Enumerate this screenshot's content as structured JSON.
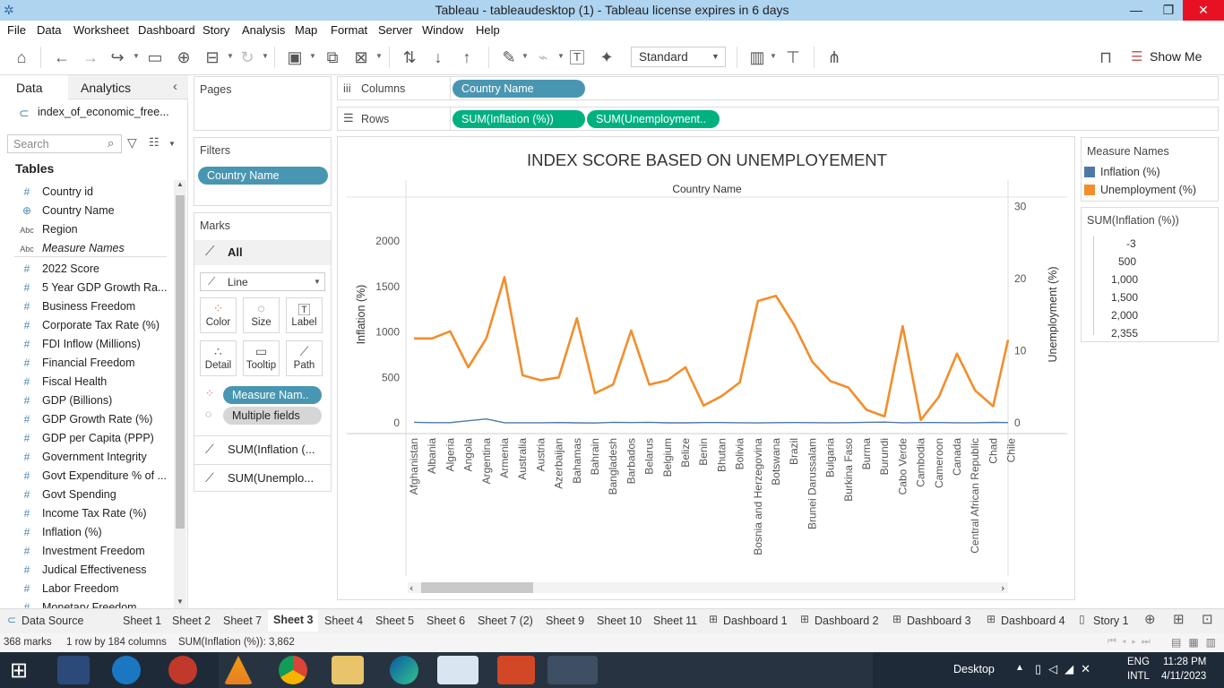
{
  "titlebar": {
    "title": "Tableau - tableaudesktop (1) - Tableau license expires in 6 days",
    "minimize": "—",
    "restore": "❐",
    "close": "✕"
  },
  "menu": [
    "File",
    "Data",
    "Worksheet",
    "Dashboard",
    "Story",
    "Analysis",
    "Map",
    "Format",
    "Server",
    "Window",
    "Help"
  ],
  "toolbar": {
    "fit_dropdown": "Standard",
    "show_me": "Show Me"
  },
  "left_panel": {
    "tab_data": "Data",
    "tab_analytics": "Analytics",
    "collapse": "‹",
    "datasource": "index_of_economic_free...",
    "search_placeholder": "Search",
    "tables_header": "Tables",
    "fields": [
      {
        "icon": "#",
        "name": "Country id"
      },
      {
        "icon": "globe",
        "name": "Country Name"
      },
      {
        "icon": "Abc",
        "name": "Region"
      },
      {
        "icon": "Abc",
        "name": "Measure Names"
      },
      {
        "icon": "#",
        "name": "2022 Score"
      },
      {
        "icon": "#",
        "name": "5 Year GDP Growth Ra..."
      },
      {
        "icon": "#",
        "name": "Business Freedom"
      },
      {
        "icon": "#",
        "name": "Corporate Tax Rate (%)"
      },
      {
        "icon": "#",
        "name": "FDI Inflow (Millions)"
      },
      {
        "icon": "#",
        "name": "Financial Freedom"
      },
      {
        "icon": "#",
        "name": "Fiscal Health"
      },
      {
        "icon": "#",
        "name": "GDP (Billions)"
      },
      {
        "icon": "#",
        "name": "GDP Growth Rate (%)"
      },
      {
        "icon": "#",
        "name": "GDP per Capita (PPP)"
      },
      {
        "icon": "#",
        "name": "Government Integrity"
      },
      {
        "icon": "#",
        "name": "Govt Expenditure % of ..."
      },
      {
        "icon": "#",
        "name": "Govt Spending"
      },
      {
        "icon": "#",
        "name": "Income Tax Rate (%)"
      },
      {
        "icon": "#",
        "name": "Inflation (%)"
      },
      {
        "icon": "#",
        "name": "Investment Freedom"
      },
      {
        "icon": "#",
        "name": "Judical Effectiveness"
      },
      {
        "icon": "#",
        "name": "Labor Freedom"
      },
      {
        "icon": "#",
        "name": "Monetary Freedom"
      }
    ]
  },
  "shelves": {
    "pages": "Pages",
    "columns_label": "Columns",
    "columns_pill": "Country Name",
    "rows_label": "Rows",
    "rows_pills": [
      "SUM(Inflation (%))",
      "SUM(Unemployment.."
    ],
    "filters": "Filters",
    "filter_pill": "Country Name"
  },
  "marks": {
    "header": "Marks",
    "all": "All",
    "type": "Line",
    "buttons": [
      "Color",
      "Size",
      "Label",
      "Detail",
      "Tooltip",
      "Path"
    ],
    "pill_measure": "Measure Nam..",
    "pill_multiple": "Multiple fields",
    "sum_inflation": "SUM(Inflation (...",
    "sum_unemployment": "SUM(Unemplo..."
  },
  "legend": {
    "measure_names_title": "Measure Names",
    "items": [
      {
        "name": "Inflation (%)",
        "color": "#4e79a7"
      },
      {
        "name": "Unemployment (%)",
        "color": "#f28e2b"
      }
    ],
    "size_title": "SUM(Inflation (%))",
    "size_values": [
      "-3",
      "500",
      "1,000",
      "1,500",
      "2,000",
      "2,355"
    ]
  },
  "chart_data": {
    "type": "line",
    "title": "INDEX SCORE BASED ON  UNEMPLOYEMENT",
    "xlabel": "Country Name",
    "ylabel_left": "Inflation (%)",
    "ylabel_right": "Unemployment (%)",
    "left_ticks": [
      "0",
      "500",
      "1000",
      "1500",
      "2000"
    ],
    "right_ticks": [
      "0",
      "10",
      "20",
      "30"
    ],
    "ylim_left": [
      -120,
      2400
    ],
    "ylim_right": [
      0,
      30
    ],
    "categories": [
      "Afghanistan",
      "Albania",
      "Algeria",
      "Angola",
      "Argentina",
      "Armenia",
      "Australia",
      "Austria",
      "Azerbaijan",
      "Bahamas",
      "Bahrain",
      "Bangladesh",
      "Barbados",
      "Belarus",
      "Belgium",
      "Belize",
      "Benin",
      "Bhutan",
      "Bolivia",
      "Bosnia and Herzegovina",
      "Botswana",
      "Brazil",
      "Brunei Darussalam",
      "Bulgaria",
      "Burkina Faso",
      "Burma",
      "Burundi",
      "Cabo Verde",
      "Cambodia",
      "Cameroon",
      "Canada",
      "Central African Republic",
      "Chad",
      "Chile"
    ],
    "series": [
      {
        "name": "Inflation (%)",
        "axis": "left",
        "color": "#4e79a7",
        "values": [
          5.6,
          1.6,
          2.4,
          22.3,
          42.0,
          1.2,
          0.9,
          1.4,
          2.8,
          0,
          -2.3,
          5.6,
          3.2,
          5.5,
          0.4,
          0.1,
          3.0,
          3.0,
          0.9,
          -1.1,
          1.9,
          3.2,
          1.9,
          1.2,
          1.9,
          5.7,
          7.6,
          0.6,
          2.9,
          2.5,
          0.7,
          0.9,
          4.5,
          3.1
        ]
      },
      {
        "name": "Unemployment (%)",
        "axis": "right",
        "color": "#f28e2b",
        "values": [
          11.7,
          11.7,
          12.7,
          7.7,
          11.7,
          20.2,
          6.6,
          5.9,
          6.3,
          14.5,
          4.1,
          5.3,
          12.8,
          5.3,
          5.9,
          7.7,
          2.4,
          3.7,
          5.6,
          16.9,
          17.6,
          13.6,
          8.5,
          5.8,
          4.9,
          1.8,
          0.9,
          13.4,
          0.4,
          3.6,
          9.6,
          4.5,
          2.3,
          11.5
        ]
      }
    ]
  },
  "tabs": [
    "Data Source",
    "Sheet 1",
    "Sheet 2",
    "Sheet 7",
    "Sheet 3",
    "Sheet 4",
    "Sheet 5",
    "Sheet 6",
    "Sheet 7 (2)",
    "Sheet 9",
    "Sheet 10",
    "Sheet 11",
    "Dashboard 1",
    "Dashboard 2",
    "Dashboard 3",
    "Dashboard 4",
    "Story 1"
  ],
  "active_tab": "Sheet 3",
  "status": {
    "marks": "368 marks",
    "rows_cols": "1 row by 184 columns",
    "sum": "SUM(Inflation (%)): 3,862"
  },
  "taskbar": {
    "desktop": "Desktop",
    "lang1": "ENG",
    "lang2": "INTL",
    "time": "11:28 PM",
    "date": "4/11/2023"
  }
}
